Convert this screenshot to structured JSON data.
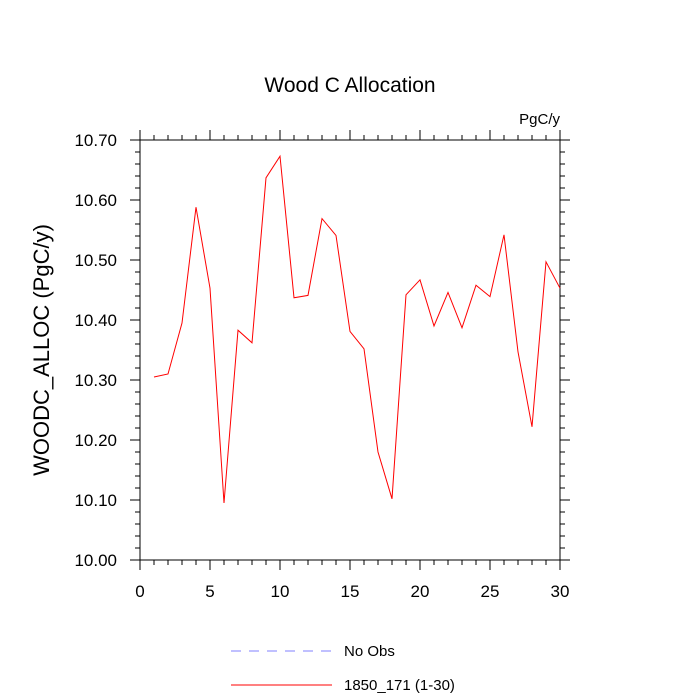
{
  "chart_data": {
    "type": "line",
    "title": "Wood C Allocation",
    "units_label": "PgC/y",
    "ylabel": "WOODC_ALLOC  (PgC/y)",
    "xlabel": "",
    "xlim": [
      0,
      30
    ],
    "ylim": [
      10.0,
      10.7
    ],
    "x_ticks": [
      0,
      5,
      10,
      15,
      20,
      25,
      30
    ],
    "y_ticks": [
      10.0,
      10.1,
      10.2,
      10.3,
      10.4,
      10.5,
      10.6,
      10.7
    ],
    "y_tick_labels": [
      "10.00",
      "10.10",
      "10.20",
      "10.30",
      "10.40",
      "10.50",
      "10.60",
      "10.70"
    ],
    "grid": false,
    "legend_position": "bottom",
    "series": [
      {
        "name": "No Obs",
        "color": "#8080ff",
        "dash": "dashed",
        "x": [],
        "y": []
      },
      {
        "name": "1850_171 (1-30)",
        "color": "#ff0000",
        "dash": "solid",
        "x": [
          1,
          2,
          3,
          4,
          5,
          6,
          7,
          8,
          9,
          10,
          11,
          12,
          13,
          14,
          15,
          16,
          17,
          18,
          19,
          20,
          21,
          22,
          23,
          24,
          25,
          26,
          27,
          28,
          29,
          30
        ],
        "y": [
          10.305,
          10.31,
          10.395,
          10.588,
          10.453,
          10.095,
          10.383,
          10.362,
          10.637,
          10.673,
          10.437,
          10.441,
          10.569,
          10.541,
          10.381,
          10.352,
          10.18,
          10.102,
          10.442,
          10.467,
          10.39,
          10.446,
          10.387,
          10.458,
          10.439,
          10.542,
          10.347,
          10.222,
          10.497,
          10.453
        ]
      }
    ]
  }
}
